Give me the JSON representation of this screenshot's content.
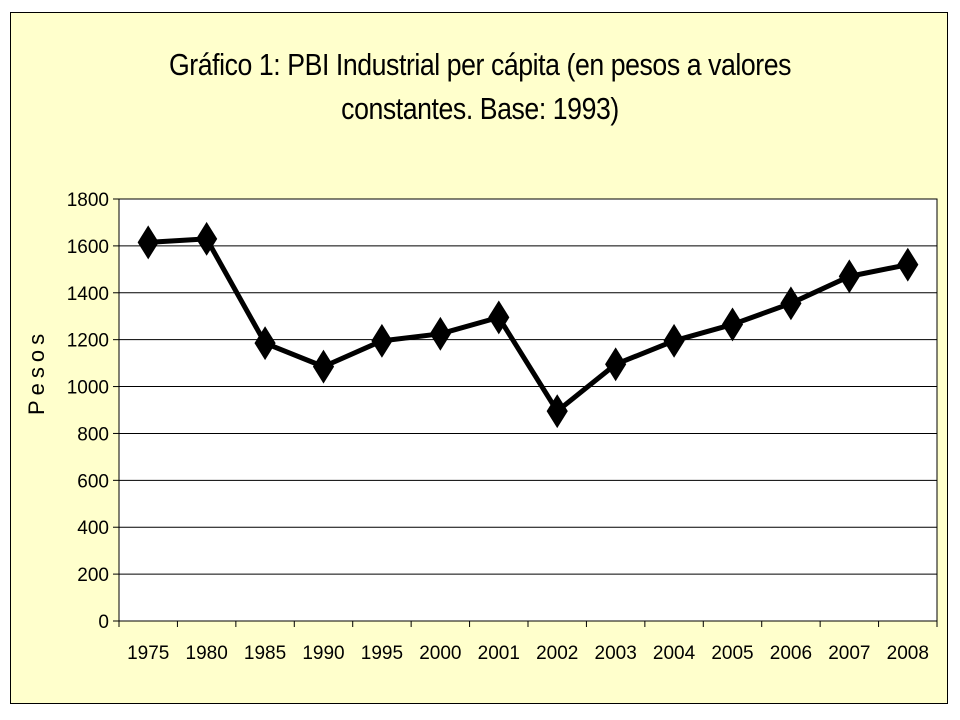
{
  "chart_data": {
    "type": "line",
    "title": "Gráfico 1: PBI Industrial per cápita (en pesos a valores constantes. Base: 1993)",
    "title_lines": [
      "Gráfico 1: PBI Industrial per cápita (en pesos a valores",
      "constantes. Base: 1993)"
    ],
    "xlabel": "",
    "ylabel": "Pesos",
    "categories": [
      "1975",
      "1980",
      "1985",
      "1990",
      "1995",
      "2000",
      "2001",
      "2002",
      "2003",
      "2004",
      "2005",
      "2006",
      "2007",
      "2008"
    ],
    "series": [
      {
        "values": [
          1615,
          1630,
          1185,
          1085,
          1195,
          1225,
          1295,
          895,
          1095,
          1195,
          1265,
          1355,
          1470,
          1520
        ],
        "color": "#000000",
        "marker": "diamond"
      }
    ],
    "ylim": [
      0,
      1800
    ],
    "yticks": [
      0,
      200,
      400,
      600,
      800,
      1000,
      1200,
      1400,
      1600,
      1800
    ],
    "grid": "horizontal",
    "legend": "none",
    "colors": {
      "background": "#ffffcc",
      "plot_area": "#ffffff",
      "line": "#000000"
    }
  }
}
